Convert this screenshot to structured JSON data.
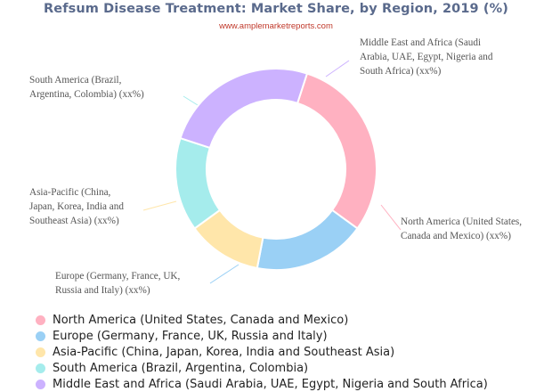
{
  "header": {
    "title": "Refsum Disease Treatment: Market Share, by Region, 2019 (%)",
    "source": "www.amplemarketreports.com"
  },
  "chart_data": {
    "type": "pie",
    "donut": true,
    "title": "Refsum Disease Treatment: Market Share, by Region, 2019 (%)",
    "legend_position": "bottom-left",
    "series": [
      {
        "name": "North America (United States, Canada and Mexico)",
        "value": 30,
        "color": "#ffb1c1",
        "label_lines": [
          "North America (United States,",
          "Canada and Mexico) (xx%)"
        ]
      },
      {
        "name": "Europe (Germany, France, UK, Russia and Italy)",
        "value": 18,
        "color": "#9ad0f5",
        "label_lines": [
          "Europe (Germany, France, UK,",
          "Russia and Italy) (xx%)"
        ]
      },
      {
        "name": "Asia-Pacific (China, Japan, Korea, India and Southeast Asia)",
        "value": 12,
        "color": "#ffe6aa",
        "label_lines": [
          "Asia-Pacific (China,",
          "Japan, Korea, India and",
          "Southeast Asia) (xx%)"
        ]
      },
      {
        "name": "South America (Brazil, Argentina, Colombia)",
        "value": 15,
        "color": "#a5ecec",
        "label_lines": [
          "South America (Brazil,",
          "Argentina, Colombia) (xx%)"
        ]
      },
      {
        "name": "Middle East and Africa (Saudi Arabia, UAE, Egypt, Nigeria and South Africa)",
        "value": 25,
        "color": "#ccb2ff",
        "label_lines": [
          "Middle East and Africa (Saudi",
          "Arabia, UAE, Egypt, Nigeria and",
          "South Africa) (xx%)"
        ]
      }
    ]
  }
}
